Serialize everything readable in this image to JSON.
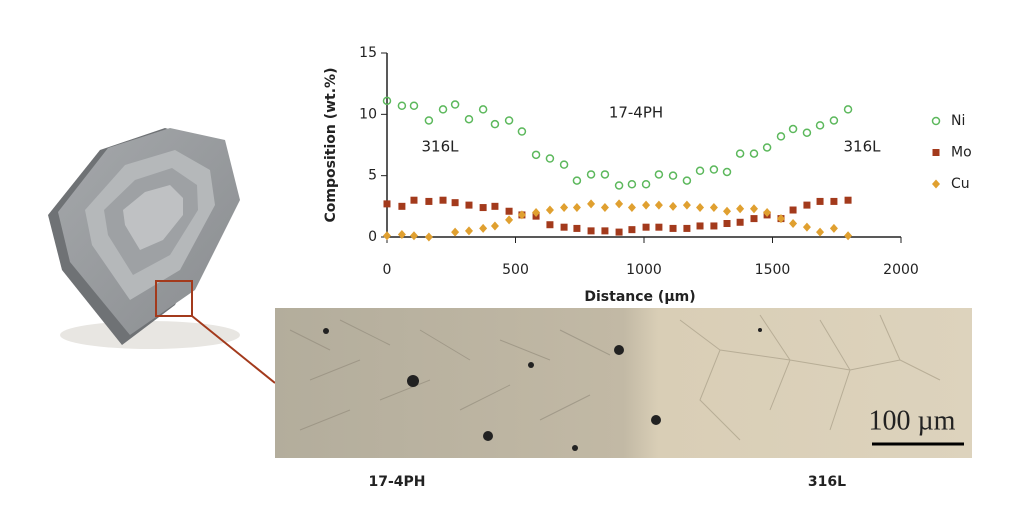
{
  "chart_data": {
    "type": "scatter",
    "x": [
      0,
      58,
      105,
      163,
      218,
      265,
      319,
      374,
      420,
      475,
      525,
      580,
      634,
      689,
      739,
      794,
      848,
      903,
      953,
      1008,
      1058,
      1113,
      1167,
      1218,
      1272,
      1323,
      1374,
      1428,
      1479,
      1533,
      1580,
      1634,
      1685,
      1739,
      1794
    ],
    "series": [
      {
        "name": "Ni",
        "color": "#5cb85c",
        "marker": "circle",
        "values": [
          11.1,
          10.7,
          10.7,
          9.5,
          10.4,
          10.8,
          9.6,
          10.4,
          9.2,
          9.5,
          8.6,
          6.7,
          6.4,
          5.9,
          4.6,
          5.1,
          5.1,
          4.2,
          4.3,
          4.3,
          5.1,
          5.0,
          4.6,
          5.4,
          5.5,
          5.3,
          6.8,
          6.8,
          7.3,
          8.2,
          8.8,
          8.5,
          9.1,
          9.5,
          10.4
        ]
      },
      {
        "name": "Mo",
        "color": "#a33a1c",
        "marker": "square",
        "values": [
          2.7,
          2.5,
          3.0,
          2.9,
          3.0,
          2.8,
          2.6,
          2.4,
          2.5,
          2.1,
          1.8,
          1.7,
          1.0,
          0.8,
          0.7,
          0.5,
          0.5,
          0.4,
          0.6,
          0.8,
          0.8,
          0.7,
          0.7,
          0.9,
          0.9,
          1.1,
          1.2,
          1.5,
          1.8,
          1.5,
          2.2,
          2.6,
          2.9,
          2.9,
          3.0
        ]
      },
      {
        "name": "Cu",
        "color": "#e0a030",
        "marker": "diamond",
        "values": [
          0.1,
          0.2,
          0.1,
          0,
          null,
          0.4,
          0.5,
          0.7,
          0.9,
          1.4,
          1.8,
          2.0,
          2.2,
          2.4,
          2.4,
          2.7,
          2.4,
          2.7,
          2.4,
          2.6,
          2.6,
          2.5,
          2.6,
          2.4,
          2.4,
          2.1,
          2.3,
          2.3,
          2.0,
          1.5,
          1.1,
          0.8,
          0.4,
          0.7,
          0.1
        ]
      }
    ],
    "xlabel": "Distance (µm)",
    "ylabel": "Composition (wt.%)",
    "xlim": [
      0,
      2000
    ],
    "xticks": [
      0,
      500,
      1000,
      1500,
      2000
    ],
    "ylim": [
      0,
      15
    ],
    "yticks": [
      0,
      5,
      10,
      15
    ],
    "annotations": [
      "17-4PH",
      "316L",
      "316L"
    ],
    "legend": "right"
  },
  "micrograph": {
    "scale_bar": "100 µm",
    "labels": [
      "17-4PH",
      "316L"
    ]
  }
}
